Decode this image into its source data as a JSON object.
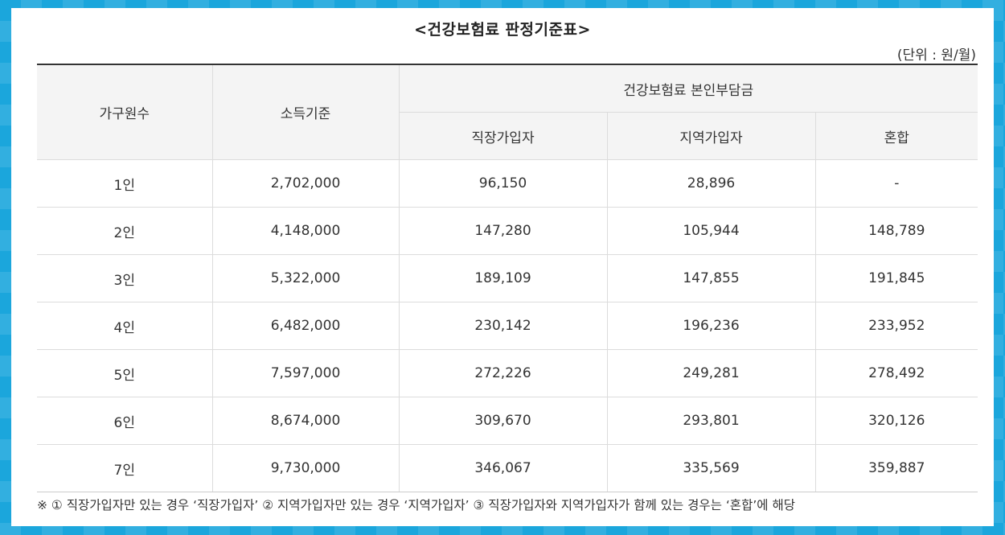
{
  "title": "<건강보험료 판정기준표>",
  "unit": "(단위 : 원/월)",
  "table": {
    "headers": {
      "household": "가구원수",
      "income": "소득기준",
      "premium_group": "건강보험료 본인부담금",
      "employee": "직장가입자",
      "regional": "지역가입자",
      "mixed": "혼합"
    },
    "rows": [
      {
        "household": "1인",
        "income": "2,702,000",
        "employee": "96,150",
        "regional": "28,896",
        "mixed": "-"
      },
      {
        "household": "2인",
        "income": "4,148,000",
        "employee": "147,280",
        "regional": "105,944",
        "mixed": "148,789"
      },
      {
        "household": "3인",
        "income": "5,322,000",
        "employee": "189,109",
        "regional": "147,855",
        "mixed": "191,845"
      },
      {
        "household": "4인",
        "income": "6,482,000",
        "employee": "230,142",
        "regional": "196,236",
        "mixed": "233,952"
      },
      {
        "household": "5인",
        "income": "7,597,000",
        "employee": "272,226",
        "regional": "249,281",
        "mixed": "278,492"
      },
      {
        "household": "6인",
        "income": "8,674,000",
        "employee": "309,670",
        "regional": "293,801",
        "mixed": "320,126"
      },
      {
        "household": "7인",
        "income": "9,730,000",
        "employee": "346,067",
        "regional": "335,569",
        "mixed": "359,887"
      }
    ]
  },
  "note": "※ ① 직장가입자만 있는 경우 ‘직장가입자’ ② 지역가입자만 있는 경우 ‘지역가입자’ ③ 직장가입자와 지역가입자가 함께 있는 경우는 ‘혼합’에 해당"
}
